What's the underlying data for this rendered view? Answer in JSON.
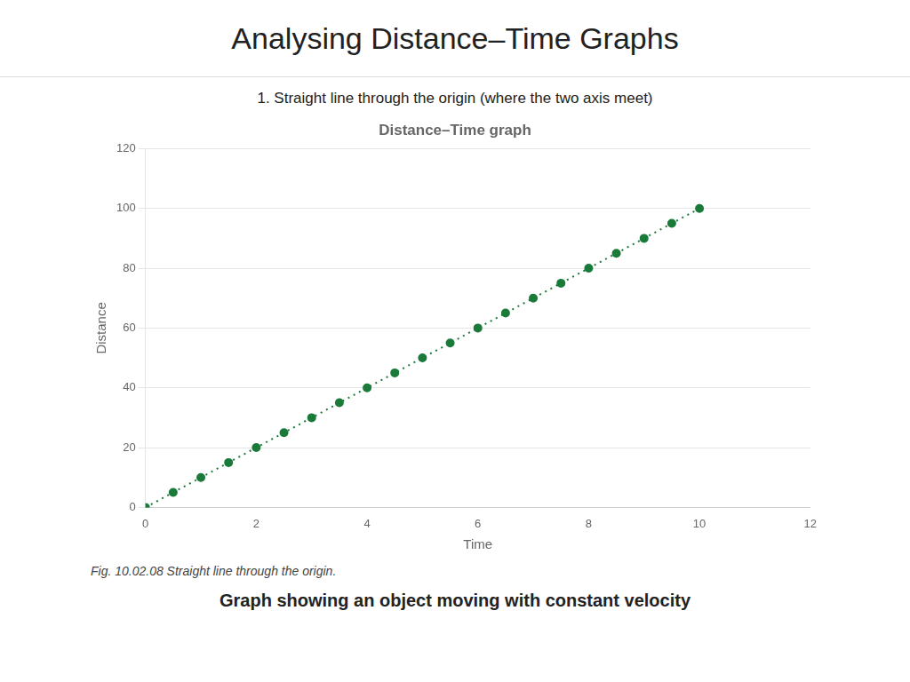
{
  "chart_data": {
    "type": "line",
    "title": "Distance–Time graph",
    "subtitle": "1. Straight line through the origin (where the two axis meet)",
    "annotations": [
      "Analysing Distance–Time Graphs",
      "Fig. 10.02.08 Straight line through the origin.",
      "Graph showing an object moving with constant velocity"
    ],
    "x_label": "Time",
    "y_label": "Distance",
    "x": [
      0,
      0.5,
      1,
      1.5,
      2,
      2.5,
      3,
      3.5,
      4,
      4.5,
      5,
      5.5,
      6,
      6.5,
      7,
      7.5,
      8,
      8.5,
      9,
      9.5,
      10
    ],
    "values": [
      0,
      5,
      10,
      15,
      20,
      25,
      30,
      35,
      40,
      45,
      50,
      55,
      60,
      65,
      70,
      75,
      80,
      85,
      90,
      95,
      100
    ],
    "color": "#1a7a3a",
    "marker": "circle",
    "line_style": "dotted",
    "xlim": [
      0,
      12
    ],
    "ylim": [
      0,
      120
    ],
    "xticks": [
      0,
      2,
      4,
      6,
      8,
      10,
      12
    ],
    "yticks": [
      0,
      20,
      40,
      60,
      80,
      100,
      120
    ],
    "grid": "y"
  }
}
